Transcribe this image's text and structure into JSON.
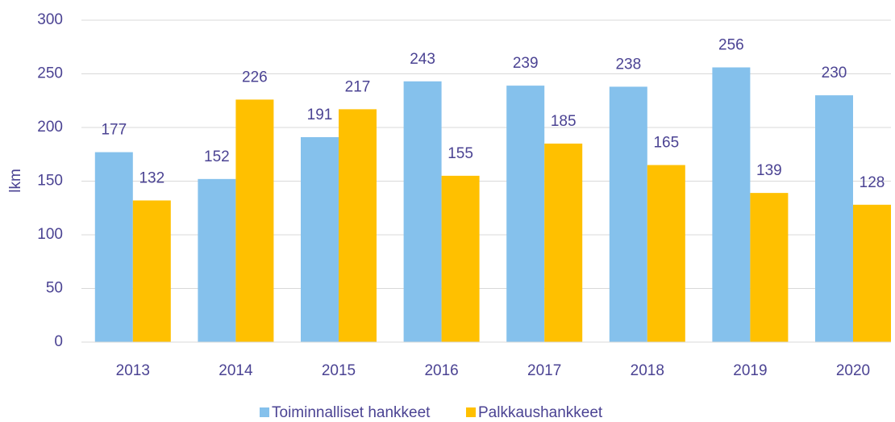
{
  "chart_data": {
    "type": "bar",
    "y_label": "lkm",
    "categories": [
      "2013",
      "2014",
      "2015",
      "2016",
      "2017",
      "2018",
      "2019",
      "2020"
    ],
    "series": [
      {
        "name": "Toiminnalliset hankkeet",
        "color": "#85c1ec",
        "values": [
          177,
          152,
          191,
          243,
          239,
          238,
          256,
          230
        ]
      },
      {
        "name": "Palkkaushankkeet",
        "color": "#ffc000",
        "values": [
          132,
          226,
          217,
          155,
          185,
          165,
          139,
          128
        ]
      }
    ],
    "ylim": [
      0,
      300
    ],
    "yticks": [
      0,
      50,
      100,
      150,
      200,
      250,
      300
    ],
    "grid": true,
    "legend": "bottom"
  }
}
